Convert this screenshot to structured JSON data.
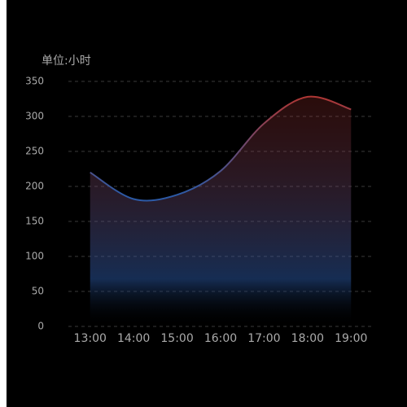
{
  "chart_data": {
    "type": "area",
    "y_axis_label": "单位:小时",
    "categories": [
      "13:00",
      "14:00",
      "15:00",
      "16:00",
      "17:00",
      "18:00",
      "19:00"
    ],
    "values": [
      220,
      182,
      188,
      222,
      290,
      328,
      310
    ],
    "color_top": "#b8342c",
    "color_bottom": "#2c5aa6",
    "ylim": [
      0,
      350
    ],
    "yticks": [
      0,
      50,
      100,
      150,
      200,
      250,
      300,
      350
    ],
    "grid": true,
    "smooth": true
  }
}
